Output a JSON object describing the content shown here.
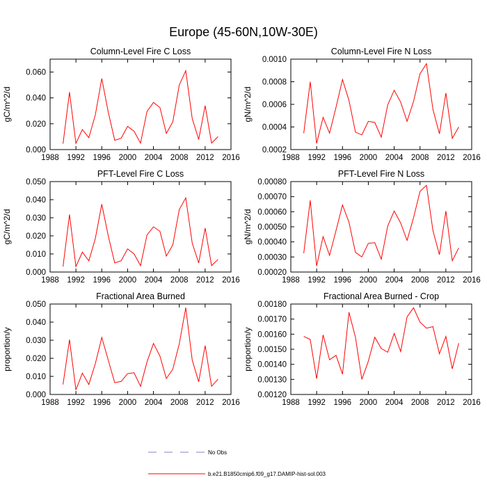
{
  "figure_title": "Europe (45-60N,10W-30E)",
  "legend": [
    {
      "label": "No Obs",
      "color": "#8080c0",
      "dash": true
    },
    {
      "label": "b.e21.B1850cmip6.f09_g17.DAMIP-hist-sol.003",
      "color": "#ff0000",
      "dash": false
    }
  ],
  "chart_data": [
    {
      "type": "line",
      "title": "Column-Level Fire C Loss",
      "ylabel": "gC/m^2/d",
      "xlabel": "",
      "xlim": [
        1988,
        2016
      ],
      "xticks": [
        1988,
        1992,
        1996,
        2000,
        2004,
        2008,
        2012,
        2016
      ],
      "ylim": [
        0.0,
        0.07
      ],
      "yticks": [
        0.0,
        0.02,
        0.04,
        0.06
      ],
      "yticklabels": [
        "0.000",
        "0.020",
        "0.040",
        "0.060"
      ],
      "series": [
        {
          "color": "#ff0000",
          "x": [
            1990,
            1991,
            1992,
            1993,
            1994,
            1995,
            1996,
            1997,
            1998,
            1999,
            2000,
            2001,
            2002,
            2003,
            2004,
            2005,
            2006,
            2007,
            2008,
            2009,
            2010,
            2011,
            2012,
            2013,
            2014
          ],
          "values": [
            0.0045,
            0.0445,
            0.0048,
            0.0155,
            0.0092,
            0.0268,
            0.055,
            0.029,
            0.0072,
            0.0088,
            0.018,
            0.0142,
            0.005,
            0.0295,
            0.0365,
            0.0325,
            0.0125,
            0.0215,
            0.05,
            0.061,
            0.024,
            0.0078,
            0.034,
            0.005,
            0.01
          ]
        }
      ]
    },
    {
      "type": "line",
      "title": "Column-Level Fire N Loss",
      "ylabel": "gN/m^2/d",
      "xlabel": "",
      "xlim": [
        1988,
        2016
      ],
      "xticks": [
        1988,
        1992,
        1996,
        2000,
        2004,
        2008,
        2012,
        2016
      ],
      "ylim": [
        0.0002,
        0.001
      ],
      "yticks": [
        0.0002,
        0.0004,
        0.0006,
        0.0008,
        0.001
      ],
      "yticklabels": [
        "0.0002",
        "0.0004",
        "0.0006",
        "0.0008",
        "0.0010"
      ],
      "series": [
        {
          "color": "#ff0000",
          "x": [
            1990,
            1991,
            1992,
            1993,
            1994,
            1995,
            1996,
            1997,
            1998,
            1999,
            2000,
            2001,
            2002,
            2003,
            2004,
            2005,
            2006,
            2007,
            2008,
            2009,
            2010,
            2011,
            2012,
            2013,
            2014
          ],
          "values": [
            0.000345,
            0.0008,
            0.000255,
            0.000485,
            0.000345,
            0.000575,
            0.00082,
            0.000635,
            0.000355,
            0.00033,
            0.00045,
            0.00044,
            0.00031,
            0.000595,
            0.000725,
            0.00062,
            0.00045,
            0.000625,
            0.00087,
            0.00096,
            0.000555,
            0.00034,
            0.0007,
            0.0003,
            0.0004
          ]
        }
      ]
    },
    {
      "type": "line",
      "title": "PFT-Level Fire C Loss",
      "ylabel": "gC/m^2/d",
      "xlabel": "",
      "xlim": [
        1988,
        2016
      ],
      "xticks": [
        1988,
        1992,
        1996,
        2000,
        2004,
        2008,
        2012,
        2016
      ],
      "ylim": [
        0.0,
        0.05
      ],
      "yticks": [
        0.0,
        0.01,
        0.02,
        0.03,
        0.04,
        0.05
      ],
      "yticklabels": [
        "0.000",
        "0.010",
        "0.020",
        "0.030",
        "0.040",
        "0.050"
      ],
      "series": [
        {
          "color": "#ff0000",
          "x": [
            1990,
            1991,
            1992,
            1993,
            1994,
            1995,
            1996,
            1997,
            1998,
            1999,
            2000,
            2001,
            2002,
            2003,
            2004,
            2005,
            2006,
            2007,
            2008,
            2009,
            2010,
            2011,
            2012,
            2013,
            2014
          ],
          "values": [
            0.003,
            0.0318,
            0.003,
            0.011,
            0.0062,
            0.0185,
            0.0375,
            0.02,
            0.005,
            0.0062,
            0.0128,
            0.01,
            0.0035,
            0.0205,
            0.025,
            0.0225,
            0.0088,
            0.015,
            0.0345,
            0.041,
            0.016,
            0.005,
            0.0243,
            0.0035,
            0.007
          ]
        }
      ]
    },
    {
      "type": "line",
      "title": "PFT-Level Fire N Loss",
      "ylabel": "gN/m^2/d",
      "xlabel": "",
      "xlim": [
        1988,
        2016
      ],
      "xticks": [
        1988,
        1992,
        1996,
        2000,
        2004,
        2008,
        2012,
        2016
      ],
      "ylim": [
        0.0002,
        0.0008
      ],
      "yticks": [
        0.0002,
        0.0003,
        0.0004,
        0.0005,
        0.0006,
        0.0007,
        0.0008
      ],
      "yticklabels": [
        "0.00020",
        "0.00030",
        "0.00040",
        "0.00050",
        "0.00060",
        "0.00070",
        "0.00080"
      ],
      "series": [
        {
          "color": "#ff0000",
          "x": [
            1990,
            1991,
            1992,
            1993,
            1994,
            1995,
            1996,
            1997,
            1998,
            1999,
            2000,
            2001,
            2002,
            2003,
            2004,
            2005,
            2006,
            2007,
            2008,
            2009,
            2010,
            2011,
            2012,
            2013,
            2014
          ],
          "values": [
            0.000325,
            0.000675,
            0.00024,
            0.000435,
            0.00031,
            0.000475,
            0.000645,
            0.00053,
            0.00033,
            0.0003,
            0.00039,
            0.000395,
            0.000285,
            0.000505,
            0.000605,
            0.000525,
            0.00041,
            0.00056,
            0.000735,
            0.000775,
            0.000475,
            0.000315,
            0.000605,
            0.000275,
            0.00036
          ]
        }
      ]
    },
    {
      "type": "line",
      "title": "Fractional Area Burned",
      "ylabel": "proportion/y",
      "xlabel": "",
      "xlim": [
        1988,
        2016
      ],
      "xticks": [
        1988,
        1992,
        1996,
        2000,
        2004,
        2008,
        2012,
        2016
      ],
      "ylim": [
        0.0,
        0.05
      ],
      "yticks": [
        0.0,
        0.01,
        0.02,
        0.03,
        0.04,
        0.05
      ],
      "yticklabels": [
        "0.000",
        "0.010",
        "0.020",
        "0.030",
        "0.040",
        "0.050"
      ],
      "series": [
        {
          "color": "#ff0000",
          "x": [
            1990,
            1991,
            1992,
            1993,
            1994,
            1995,
            1996,
            1997,
            1998,
            1999,
            2000,
            2001,
            2002,
            2003,
            2004,
            2005,
            2006,
            2007,
            2008,
            2009,
            2010,
            2011,
            2012,
            2013,
            2014
          ],
          "values": [
            0.0055,
            0.0303,
            0.0025,
            0.0118,
            0.0055,
            0.017,
            0.0315,
            0.019,
            0.0065,
            0.0072,
            0.0115,
            0.012,
            0.0045,
            0.018,
            0.0282,
            0.0212,
            0.0088,
            0.014,
            0.028,
            0.048,
            0.019,
            0.007,
            0.027,
            0.0045,
            0.0085
          ]
        }
      ]
    },
    {
      "type": "line",
      "title": "Fractional Area Burned - Crop",
      "ylabel": "proportion/y",
      "xlabel": "",
      "xlim": [
        1988,
        2016
      ],
      "xticks": [
        1988,
        1992,
        1996,
        2000,
        2004,
        2008,
        2012,
        2016
      ],
      "ylim": [
        0.0012,
        0.0018
      ],
      "yticks": [
        0.0012,
        0.0013,
        0.0014,
        0.0015,
        0.0016,
        0.0017,
        0.0018
      ],
      "yticklabels": [
        "0.00120",
        "0.00130",
        "0.00140",
        "0.00150",
        "0.00160",
        "0.00170",
        "0.00180"
      ],
      "series": [
        {
          "color": "#ff0000",
          "x": [
            1990,
            1991,
            1992,
            1993,
            1994,
            1995,
            1996,
            1997,
            1998,
            1999,
            2000,
            2001,
            2002,
            2003,
            2004,
            2005,
            2006,
            2007,
            2008,
            2009,
            2010,
            2011,
            2012,
            2013,
            2014
          ],
          "values": [
            0.001585,
            0.001565,
            0.001305,
            0.001595,
            0.00143,
            0.00146,
            0.001335,
            0.001745,
            0.00158,
            0.0013,
            0.00142,
            0.00158,
            0.001505,
            0.00148,
            0.001605,
            0.001485,
            0.001715,
            0.001775,
            0.00168,
            0.00164,
            0.00165,
            0.00147,
            0.001585,
            0.00137,
            0.00154
          ]
        }
      ]
    }
  ]
}
